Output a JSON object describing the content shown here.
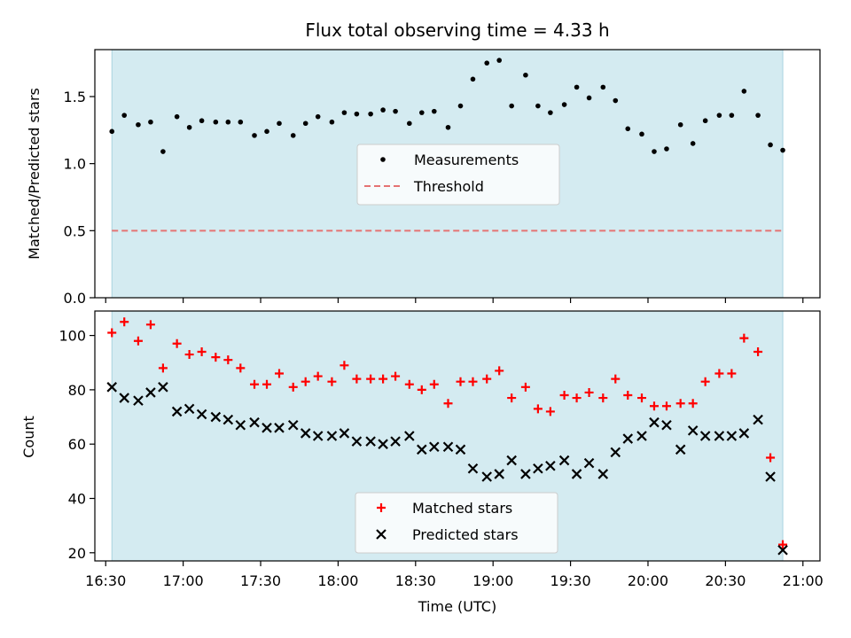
{
  "chart_data": {
    "title": "Flux total observing time = 4.33 h",
    "xlabel": "Time (UTC)",
    "x_axis": {
      "unit": "hours after 16:00 UTC",
      "range": [
        16.43,
        21.11
      ],
      "ticks": [
        16.5,
        17.0,
        17.5,
        18.0,
        18.5,
        19.0,
        19.5,
        20.0,
        20.5,
        21.0
      ],
      "tick_labels": [
        "16:30",
        "17:00",
        "17:30",
        "18:00",
        "18:30",
        "19:00",
        "19:30",
        "20:00",
        "20:30",
        "21:00"
      ]
    },
    "shaded_interval": [
      16.54,
      20.87
    ],
    "panels": [
      {
        "type": "scatter",
        "ylabel": "Matched/Predicted stars",
        "ylim": [
          0,
          1.85
        ],
        "yticks": [
          0.0,
          0.5,
          1.0,
          1.5
        ],
        "ytick_labels": [
          "0.0",
          "0.5",
          "1.0",
          "1.5"
        ],
        "legend": {
          "placement": "center",
          "entries": [
            "Measurements",
            "Threshold"
          ]
        },
        "series": [
          {
            "name": "Measurements",
            "marker": "dot",
            "color": "#000000",
            "x": [
              16.54,
              16.62,
              16.71,
              16.79,
              16.87,
              16.96,
              17.04,
              17.12,
              17.21,
              17.29,
              17.37,
              17.46,
              17.54,
              17.62,
              17.71,
              17.79,
              17.87,
              17.96,
              18.04,
              18.12,
              18.21,
              18.29,
              18.37,
              18.46,
              18.54,
              18.62,
              18.71,
              18.79,
              18.87,
              18.96,
              19.04,
              19.12,
              19.21,
              19.29,
              19.37,
              19.46,
              19.54,
              19.62,
              19.71,
              19.79,
              19.87,
              19.96,
              20.04,
              20.12,
              20.21,
              20.29,
              20.37,
              20.46,
              20.54,
              20.62,
              20.71,
              20.79,
              20.87
            ],
            "y": [
              1.24,
              1.36,
              1.29,
              1.31,
              1.09,
              1.35,
              1.27,
              1.32,
              1.31,
              1.31,
              1.31,
              1.21,
              1.24,
              1.3,
              1.21,
              1.3,
              1.35,
              1.31,
              1.38,
              1.37,
              1.37,
              1.4,
              1.39,
              1.3,
              1.38,
              1.39,
              1.27,
              1.43,
              1.63,
              1.75,
              1.77,
              1.43,
              1.66,
              1.43,
              1.38,
              1.44,
              1.57,
              1.49,
              1.57,
              1.47,
              1.26,
              1.22,
              1.09,
              1.11,
              1.29,
              1.15,
              1.32,
              1.36,
              1.36,
              1.54,
              1.36,
              1.14,
              1.1
            ]
          },
          {
            "name": "Threshold",
            "type": "line",
            "style": "dashed",
            "color": "#e57373",
            "x": [
              16.54,
              20.87
            ],
            "y": [
              0.5,
              0.5
            ]
          }
        ]
      },
      {
        "type": "scatter",
        "ylabel": "Count",
        "ylim": [
          17,
          109
        ],
        "yticks": [
          20,
          40,
          60,
          80,
          100
        ],
        "ytick_labels": [
          "20",
          "40",
          "60",
          "80",
          "100"
        ],
        "legend": {
          "placement": "lower center",
          "entries": [
            "Matched stars",
            "Predicted stars"
          ]
        },
        "series": [
          {
            "name": "Matched stars",
            "marker": "plus",
            "color": "#ff0000",
            "x": [
              16.54,
              16.62,
              16.71,
              16.79,
              16.87,
              16.96,
              17.04,
              17.12,
              17.21,
              17.29,
              17.37,
              17.46,
              17.54,
              17.62,
              17.71,
              17.79,
              17.87,
              17.96,
              18.04,
              18.12,
              18.21,
              18.29,
              18.37,
              18.46,
              18.54,
              18.62,
              18.71,
              18.79,
              18.87,
              18.96,
              19.04,
              19.12,
              19.21,
              19.29,
              19.37,
              19.46,
              19.54,
              19.62,
              19.71,
              19.79,
              19.87,
              19.96,
              20.04,
              20.12,
              20.21,
              20.29,
              20.37,
              20.46,
              20.54,
              20.62,
              20.71,
              20.79,
              20.87
            ],
            "y": [
              101,
              105,
              98,
              104,
              88,
              97,
              93,
              94,
              92,
              91,
              88,
              82,
              82,
              86,
              81,
              83,
              85,
              83,
              89,
              84,
              84,
              84,
              85,
              82,
              80,
              82,
              75,
              83,
              83,
              84,
              87,
              77,
              81,
              73,
              72,
              78,
              77,
              79,
              77,
              84,
              78,
              77,
              74,
              74,
              75,
              75,
              83,
              86,
              86,
              99,
              94,
              55,
              23
            ]
          },
          {
            "name": "Predicted stars",
            "marker": "x",
            "color": "#000000",
            "x": [
              16.54,
              16.62,
              16.71,
              16.79,
              16.87,
              16.96,
              17.04,
              17.12,
              17.21,
              17.29,
              17.37,
              17.46,
              17.54,
              17.62,
              17.71,
              17.79,
              17.87,
              17.96,
              18.04,
              18.12,
              18.21,
              18.29,
              18.37,
              18.46,
              18.54,
              18.62,
              18.71,
              18.79,
              18.87,
              18.96,
              19.04,
              19.12,
              19.21,
              19.29,
              19.37,
              19.46,
              19.54,
              19.62,
              19.71,
              19.79,
              19.87,
              19.96,
              20.04,
              20.12,
              20.21,
              20.29,
              20.37,
              20.46,
              20.54,
              20.62,
              20.71,
              20.79,
              20.87
            ],
            "y": [
              81,
              77,
              76,
              79,
              81,
              72,
              73,
              71,
              70,
              69,
              67,
              68,
              66,
              66,
              67,
              64,
              63,
              63,
              64,
              61,
              61,
              60,
              61,
              63,
              58,
              59,
              59,
              58,
              51,
              48,
              49,
              54,
              49,
              51,
              52,
              54,
              49,
              53,
              49,
              57,
              62,
              63,
              68,
              67,
              58,
              65,
              63,
              63,
              63,
              64,
              69,
              48,
              21
            ]
          }
        ]
      }
    ],
    "colors": {
      "shade": "#d4ebf1",
      "shade_edge": "#a9d4e0",
      "measurement": "#000000",
      "threshold": "#e57373",
      "matched": "#ff0000",
      "predicted": "#000000"
    }
  }
}
